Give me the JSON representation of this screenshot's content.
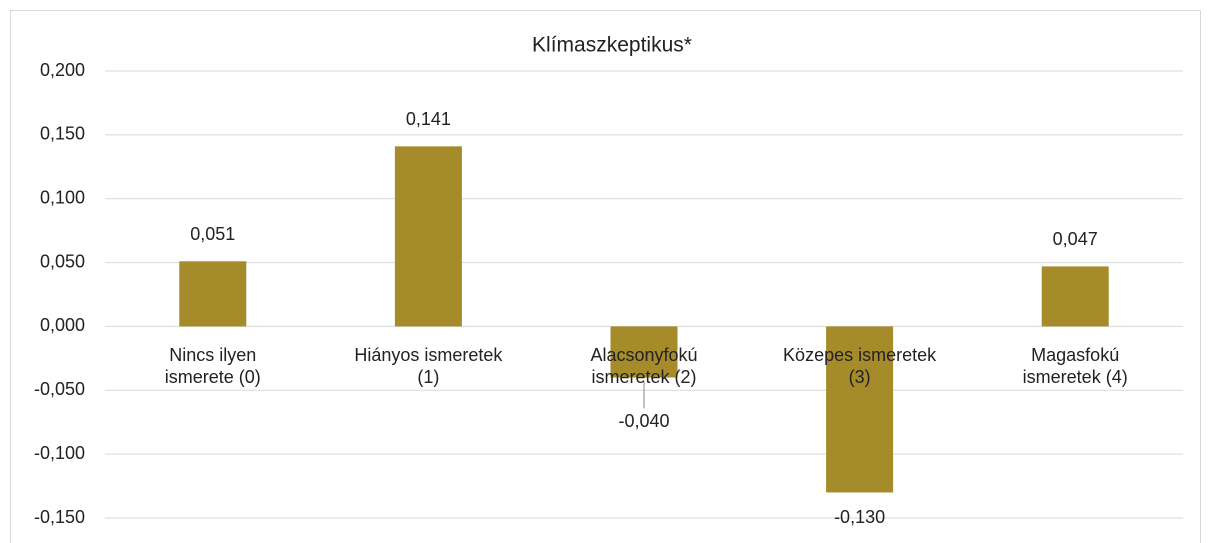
{
  "chart_data": {
    "type": "bar",
    "title": "Klímaszkeptikus*",
    "categories": [
      "Nincs ilyen\nismerete (0)",
      "Hiányos ismeretek\n(1)",
      "Alacsonyfokú\nismeretek (2)",
      "Közepes ismeretek\n(3)",
      "Magasfokú\nismeretek (4)"
    ],
    "values": [
      0.051,
      0.141,
      -0.04,
      -0.13,
      0.047
    ],
    "value_labels": [
      "0,051",
      "0,141",
      "-0,040",
      "-0,130",
      "0,047"
    ],
    "color": "#a68b2a",
    "ylim": [
      -0.15,
      0.2
    ],
    "yticks": [
      {
        "value": -0.15,
        "label": "-0,150"
      },
      {
        "value": -0.1,
        "label": "-0,100"
      },
      {
        "value": -0.05,
        "label": "-0,050"
      },
      {
        "value": 0,
        "label": "0,000"
      },
      {
        "value": 0.05,
        "label": "0,050"
      },
      {
        "value": 0.1,
        "label": "0,100"
      },
      {
        "value": 0.15,
        "label": "0,150"
      },
      {
        "value": 0.2,
        "label": "0,200"
      }
    ],
    "grid": true
  }
}
